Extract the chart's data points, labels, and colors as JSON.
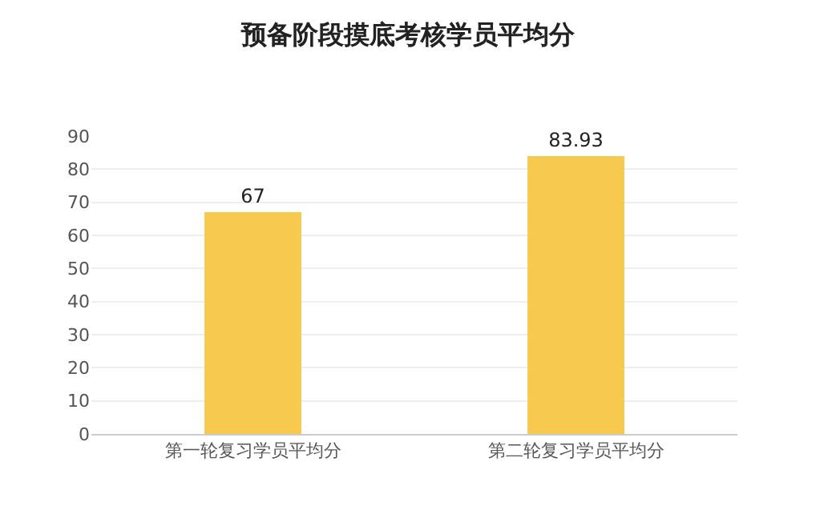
{
  "chart_data": {
    "type": "bar",
    "title": "预备阶段摸底考核学员平均分",
    "categories": [
      "第一轮复习学员平均分",
      "第二轮复习学员平均分"
    ],
    "values": [
      67,
      83.93
    ],
    "color": "#f8c94f",
    "ylim": [
      0,
      90
    ],
    "yticks": [
      0,
      10,
      20,
      30,
      40,
      50,
      60,
      70,
      80,
      90
    ],
    "grid": "y",
    "data_labels": true
  }
}
